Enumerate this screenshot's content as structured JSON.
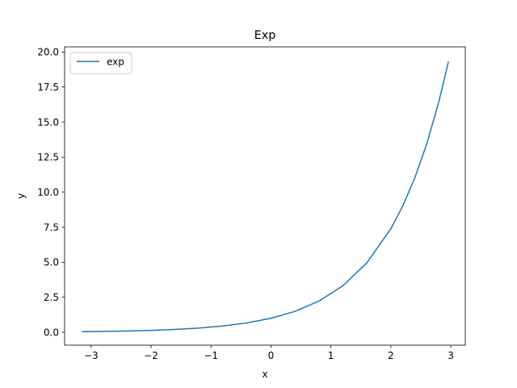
{
  "chart_data": {
    "type": "line",
    "title": "Exp",
    "xlabel": "x",
    "ylabel": "y",
    "xlim": [
      -3.442,
      3.242
    ],
    "ylim": [
      -0.92,
      20.37
    ],
    "xticks": [
      -3,
      -2,
      -1,
      0,
      1,
      2,
      3
    ],
    "xtick_labels": [
      "−3",
      "−2",
      "−1",
      "0",
      "1",
      "2",
      "3"
    ],
    "yticks": [
      0,
      2.5,
      5,
      7.5,
      10,
      12.5,
      15,
      17.5,
      20
    ],
    "ytick_labels": [
      "0.0",
      "2.5",
      "5.0",
      "7.5",
      "10.0",
      "12.5",
      "15.0",
      "17.5",
      "20.0"
    ],
    "grid": false,
    "legend": {
      "position": "top-left"
    },
    "series": [
      {
        "name": "exp",
        "color": "#1f77b4",
        "x": [
          -3.14,
          -2.8,
          -2.4,
          -2.0,
          -1.6,
          -1.2,
          -0.8,
          -0.4,
          0.0,
          0.4,
          0.8,
          1.2,
          1.6,
          2.0,
          2.2,
          2.4,
          2.6,
          2.8,
          2.96
        ],
        "y": [
          0.043,
          0.061,
          0.091,
          0.135,
          0.202,
          0.301,
          0.449,
          0.67,
          1.0,
          1.492,
          2.226,
          3.32,
          4.953,
          7.389,
          9.025,
          11.023,
          13.464,
          16.445,
          19.3
        ]
      }
    ]
  }
}
